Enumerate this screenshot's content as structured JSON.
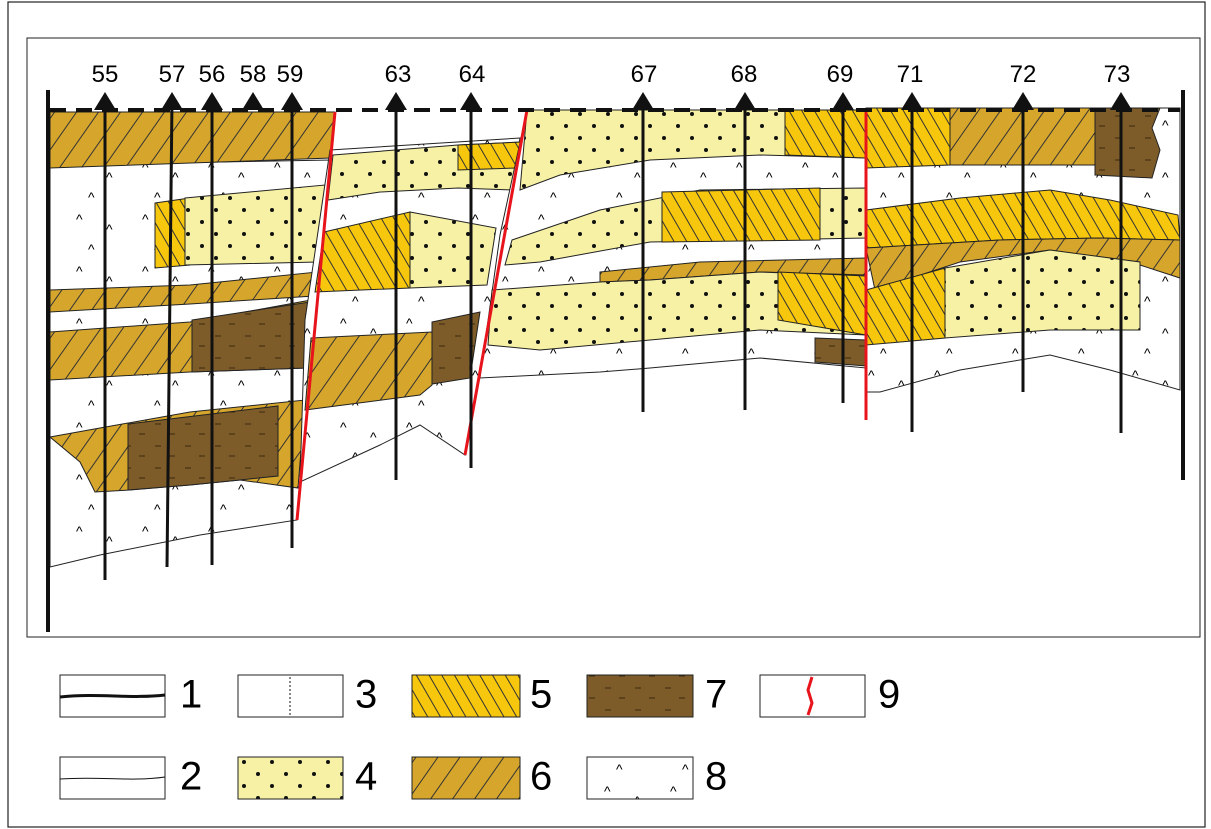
{
  "wells": [
    {
      "label": "55"
    },
    {
      "label": "57"
    },
    {
      "label": "56"
    },
    {
      "label": "58"
    },
    {
      "label": "59"
    },
    {
      "label": "63"
    },
    {
      "label": "64"
    },
    {
      "label": "67"
    },
    {
      "label": "68"
    },
    {
      "label": "69"
    },
    {
      "label": "71"
    },
    {
      "label": "72"
    },
    {
      "label": "73"
    }
  ],
  "legend": [
    {
      "label": "1"
    },
    {
      "label": "2"
    },
    {
      "label": "3"
    },
    {
      "label": "4"
    },
    {
      "label": "5"
    },
    {
      "label": "6"
    },
    {
      "label": "7"
    },
    {
      "label": "8"
    },
    {
      "label": "9"
    }
  ]
}
